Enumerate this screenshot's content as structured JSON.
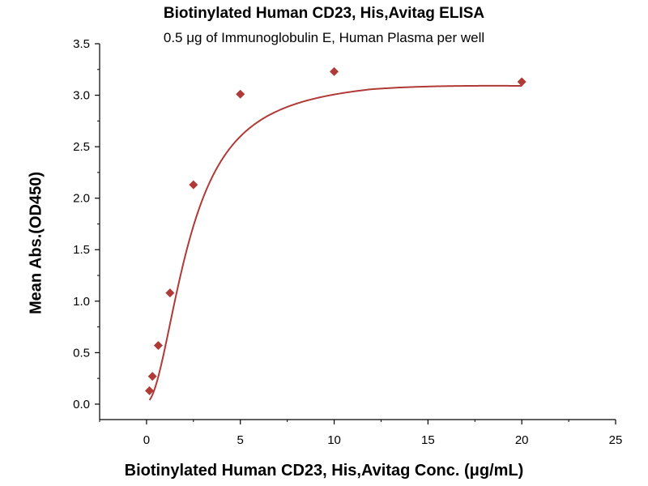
{
  "chart_data": {
    "type": "scatter",
    "title": "Biotinylated Human CD23, His,Avitag ELISA",
    "subtitle": "0.5 μg of Immunoglobulin E, Human Plasma per well",
    "xlabel": "Biotinylated Human CD23, His,Avitag Conc. (μg/mL)",
    "ylabel": "Mean Abs.(OD450)",
    "xlim": [
      -2.5,
      25
    ],
    "ylim": [
      -0.15,
      3.5
    ],
    "x_ticks": [
      0,
      5,
      10,
      15,
      20,
      25
    ],
    "y_ticks": [
      0.0,
      0.5,
      1.0,
      1.5,
      2.0,
      2.5,
      3.0,
      3.5
    ],
    "x_tick_labels": [
      "0",
      "5",
      "10",
      "15",
      "20",
      "25"
    ],
    "y_tick_labels": [
      "0.0",
      "0.5",
      "1.0",
      "1.5",
      "2.0",
      "2.5",
      "3.0",
      "3.5"
    ],
    "series": [
      {
        "x": [
          0.156,
          0.3125,
          0.625,
          1.25,
          2.5,
          5,
          10,
          20
        ],
        "y": [
          0.13,
          0.27,
          0.57,
          1.08,
          2.13,
          3.01,
          3.23,
          3.13
        ],
        "marker": "diamond",
        "fit": "4PL curve",
        "color": "#b03a37"
      }
    ],
    "grid": false,
    "legend": "none"
  }
}
